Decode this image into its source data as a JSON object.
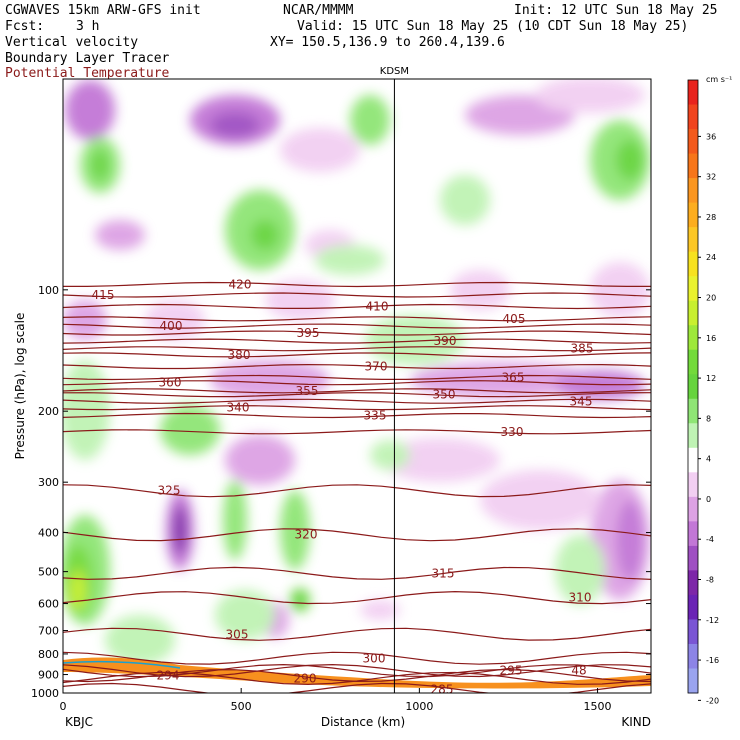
{
  "header": {
    "model": "CGWAVES 15km ARW-GFS init",
    "org": "NCAR/MMMM",
    "init": "Init: 12 UTC Sun 18 May 25",
    "fcst_label": "Fcst:",
    "fcst_value": "3 h",
    "valid": "Valid: 15 UTC Sun 18 May 25 (10 CDT Sun 18 May 25)",
    "field1": "Vertical velocity",
    "field2": "Boundary Layer Tracer",
    "field3": "Potential Temperature",
    "xy": "XY= 150.5,136.9 to 260.4,139.6",
    "field3_color": "#8b1a1a"
  },
  "chart_data": {
    "type": "heatmap",
    "title": "KDSM",
    "xlabel": "Distance (km)",
    "ylabel": "Pressure (hPa), log scale",
    "xlim": [
      0,
      1650
    ],
    "ylim": [
      1000,
      30
    ],
    "xticks": [
      "0",
      "500",
      "1000",
      "1500"
    ],
    "yticks": [
      "100",
      "200",
      "300",
      "400",
      "500",
      "600",
      "700",
      "800",
      "900",
      "1000"
    ],
    "left_station": "KBJC",
    "right_station": "KIND",
    "mid_station": "KDSM",
    "mid_station_x": 930,
    "colorbar": {
      "unit": "cm s⁻¹",
      "labels": [
        "36",
        "32",
        "28",
        "24",
        "20",
        "16",
        "12",
        "8",
        "4",
        "0",
        "-4",
        "-8",
        "-12",
        "-16",
        "-20"
      ],
      "colors": [
        "#e8231d",
        "#f0441e",
        "#f35a1c",
        "#f7761a",
        "#fb9620",
        "#fdad1f",
        "#fdc726",
        "#f7e21f",
        "#eaf22e",
        "#c8ef2f",
        "#9ee83a",
        "#73da3b",
        "#66d43e",
        "#8fe575",
        "#bff3b4",
        "#ffffff",
        "#f2cff2",
        "#dda2e4",
        "#c277d6",
        "#9f4fc2",
        "#7d27a8",
        "#6a23b5",
        "#7a55d4",
        "#8c84e6",
        "#9aa4ef"
      ]
    },
    "theta_contours": [
      {
        "label": "415",
        "p": 103
      },
      {
        "label": "420",
        "p": 97
      },
      {
        "label": "410",
        "p": 110
      },
      {
        "label": "405",
        "p": 118
      },
      {
        "label": "400",
        "p": 123
      },
      {
        "label": "395",
        "p": 128
      },
      {
        "label": "390",
        "p": 134
      },
      {
        "label": "385",
        "p": 140
      },
      {
        "label": "380",
        "p": 145
      },
      {
        "label": "370",
        "p": 155
      },
      {
        "label": "365",
        "p": 165
      },
      {
        "label": "360",
        "p": 170
      },
      {
        "label": "355",
        "p": 178
      },
      {
        "label": "350",
        "p": 182
      },
      {
        "label": "345",
        "p": 189
      },
      {
        "label": "340",
        "p": 196
      },
      {
        "label": "335",
        "p": 205
      },
      {
        "label": "330",
        "p": 225
      },
      {
        "label": "325",
        "p": 315
      },
      {
        "label": "320",
        "p": 405
      },
      {
        "label": "315",
        "p": 505
      },
      {
        "label": "310",
        "p": 580
      },
      {
        "label": "305",
        "p": 715
      },
      {
        "label": "300",
        "p": 820
      },
      {
        "label": "295",
        "p": 880
      },
      {
        "label": "294",
        "p": 905
      },
      {
        "label": "290",
        "p": 920
      },
      {
        "label": "285",
        "p": 980
      },
      {
        "label": "48",
        "p": 880
      }
    ]
  }
}
